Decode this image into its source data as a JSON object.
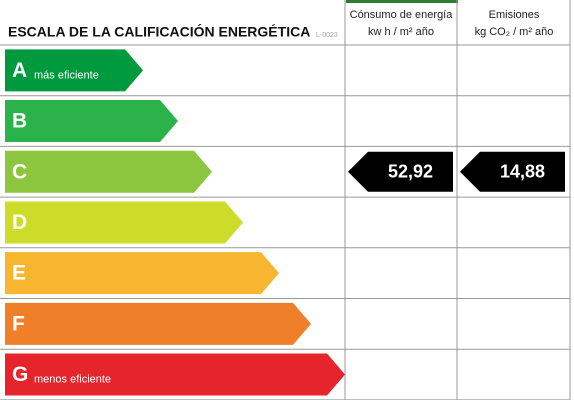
{
  "header": {
    "title": "ESCALA DE LA CALIFICACIÓN ENERGÉTICA",
    "code": "L-0023",
    "columns": [
      {
        "title": "Cónsumo de energía",
        "unit": "kw h / m² año"
      },
      {
        "title": "Emisiones",
        "unit": "kg CO₂ / m² año"
      }
    ]
  },
  "rows": [
    {
      "letter": "A",
      "label": "más eficiente",
      "color": "#009a3e"
    },
    {
      "letter": "B",
      "color": "#2bb24a"
    },
    {
      "letter": "C",
      "color": "#8cc63f",
      "consumption": "52,92",
      "emissions": "14,88"
    },
    {
      "letter": "D",
      "color": "#cddc29"
    },
    {
      "letter": "E",
      "color": "#f7b530"
    },
    {
      "letter": "F",
      "color": "#f07f2a"
    },
    {
      "letter": "G",
      "label": "menos eficiente",
      "color": "#e5242b"
    }
  ]
}
